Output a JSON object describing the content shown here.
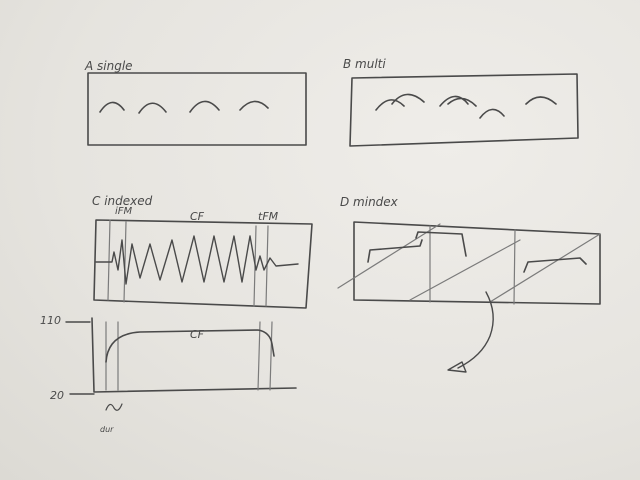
{
  "sketch": {
    "panel_a": {
      "label": "A single"
    },
    "panel_b": {
      "label": "B multi"
    },
    "panel_c": {
      "label": "C indexed",
      "ifm": "iFM",
      "cf": "CF",
      "tfm": "tFM"
    },
    "panel_d": {
      "label": "D mindex"
    },
    "panel_e": {
      "y_top": "110",
      "y_bottom": "20",
      "cf": "CF",
      "x_label": "dur"
    }
  },
  "colors": {
    "ink": "#4a4a4a",
    "paper": "#e9e7e2"
  }
}
